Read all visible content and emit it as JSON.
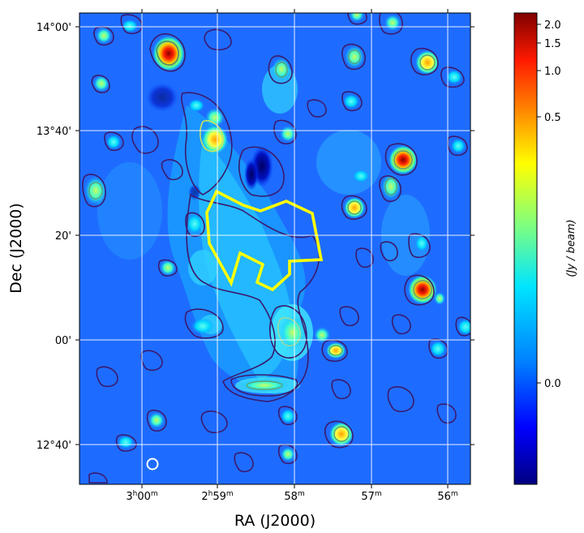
{
  "figure": {
    "xlabel": "RA (J2000)",
    "ylabel": "Dec (J2000)",
    "colorbar_label": "(Jy / beam)"
  },
  "ra_ticks": [
    {
      "h": "3",
      "m": "00"
    },
    {
      "h": "2",
      "m": "59"
    },
    {
      "h": "",
      "m": "58"
    },
    {
      "h": "",
      "m": "57"
    },
    {
      "h": "",
      "m": "56"
    }
  ],
  "dec_ticks": [
    "14°00'",
    "13°40'",
    "20'",
    "00'",
    "12°40'"
  ],
  "colorbar_ticks": [
    "2.0",
    "1.5",
    "1.0",
    "0.5",
    "0.0"
  ],
  "colors": {
    "background_map": "#1e64ff",
    "contour": "#3a1a6e",
    "region_outline": "#ffff00",
    "beam_marker": "#ffffff"
  }
}
